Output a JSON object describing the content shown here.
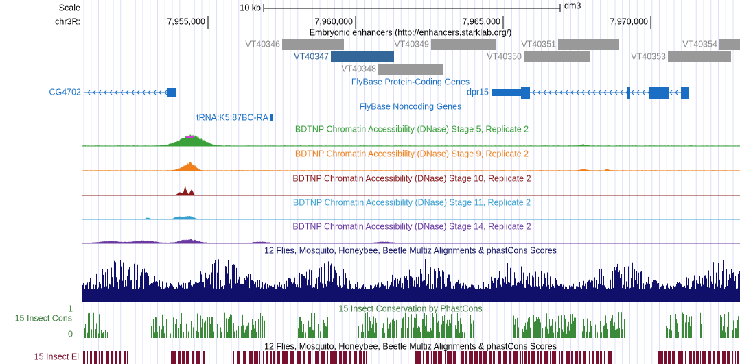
{
  "header": {
    "scale_label": "Scale",
    "scale_bar": "10 kb",
    "assembly": "dm3",
    "chrom_label": "chr3R:",
    "positions": [
      "7,955,000",
      "7,960,000",
      "7,965,000",
      "7,970,000"
    ]
  },
  "tracks": {
    "enhancers": {
      "title": "Embryonic enhancers (http://enhancers.starklab.org/)",
      "items": [
        "VT40346",
        "VT40347",
        "VT40348",
        "VT40349",
        "VT40350",
        "VT40351",
        "VT40353",
        "VT40354"
      ]
    },
    "coding_genes": {
      "title": "FlyBase Protein-Coding Genes",
      "genes": [
        "CG4702",
        "dpr15"
      ]
    },
    "noncoding_genes": {
      "title": "FlyBase Noncoding Genes",
      "genes": [
        "tRNA:K5:87BC-RA"
      ]
    },
    "dnase": [
      "BDTNP Chromatin Accessibility (DNase) Stage 5, Replicate 2",
      "BDTNP Chromatin Accessibility (DNase) Stage 9, Replicate 2",
      "BDTNP Chromatin Accessibility (DNase) Stage 10, Replicate 2",
      "BDTNP Chromatin Accessibility (DNase) Stage 11, Replicate 2",
      "BDTNP Chromatin Accessibility (DNase) Stage 14, Replicate 2"
    ],
    "multiz": {
      "title": "12 Flies, Mosquito, Honeybee, Beetle Multiz Alignments & phastCons Scores"
    },
    "phastcons": {
      "title": "15 Insect Conservation by PhastCons",
      "label": "15 Insect Cons",
      "max": 1,
      "min": 0
    },
    "elements": {
      "title": "12 Flies, Mosquito, Honeybee, Beetle Multiz Alignments & phastCons Scores",
      "label": "15 Insect El"
    }
  }
}
